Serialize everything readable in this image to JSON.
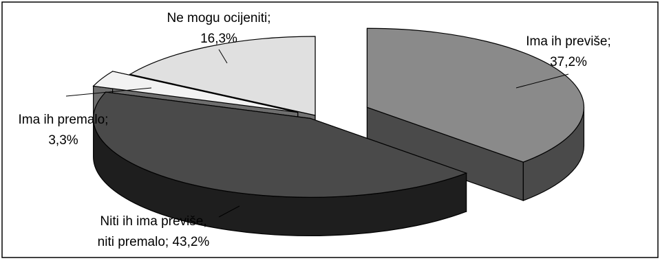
{
  "chart_data": {
    "type": "pie",
    "style": "3d-exploded",
    "title": "",
    "slices": [
      {
        "label_line1": "Ima ih previše;",
        "label_line2": "37,2%",
        "value": 37.2,
        "top_color": "#8a8a8a",
        "side_color": "#4a4a4a"
      },
      {
        "label_line1": "Niti ih ima previše,",
        "label_line2": "niti premalo; 43,2%",
        "value": 43.2,
        "top_color": "#4a4a4a",
        "side_color": "#1e1e1e"
      },
      {
        "label_line1": "Ima ih premalo;",
        "label_line2": "3,3%",
        "value": 3.3,
        "top_color": "#f2f2f2",
        "side_color": "#6e6e6e"
      },
      {
        "label_line1": "Ne mogu ocijeniti;",
        "label_line2": "16,3%",
        "value": 16.3,
        "top_color": "#e0e0e0",
        "side_color": "#737373"
      }
    ],
    "legend": "none",
    "border_color": "#000000"
  }
}
